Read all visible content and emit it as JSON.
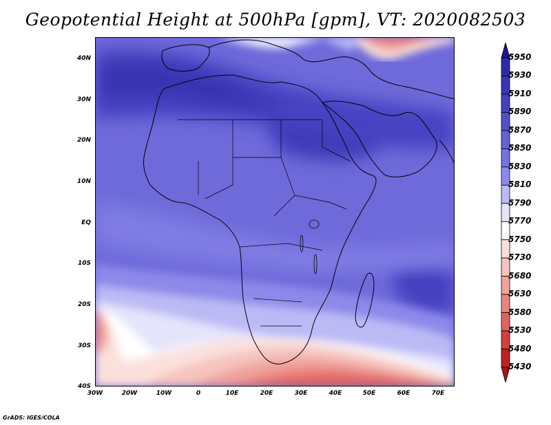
{
  "title": "Geopotential Height at 500hPa [gpm], VT: 2020082503",
  "credit": "GrADS: IGES/COLA",
  "lat_labels": [
    "40N",
    "30N",
    "20N",
    "10N",
    "EQ",
    "10S",
    "20S",
    "30S",
    "40S"
  ],
  "lon_labels": [
    "30W",
    "20W",
    "10W",
    "0",
    "10E",
    "20E",
    "30E",
    "40E",
    "50E",
    "60E",
    "70E"
  ],
  "legend": {
    "levels": [
      "5950",
      "5930",
      "5910",
      "5890",
      "5870",
      "5850",
      "5830",
      "5810",
      "5790",
      "5770",
      "5750",
      "5730",
      "5680",
      "5630",
      "5580",
      "5530",
      "5480",
      "5430"
    ],
    "colors": [
      "#1e1496",
      "#2d2ba5",
      "#3a36b4",
      "#4541c0",
      "#534fcb",
      "#6561d6",
      "#7672e0",
      "#8d89ea",
      "#bcbaf5",
      "#e4e4fb",
      "#ffffff",
      "#fbe0dc",
      "#f6c4bf",
      "#f0a39e",
      "#e98480",
      "#e16462",
      "#d44140",
      "#c21f24",
      "#a8121a"
    ]
  },
  "map": {
    "lat_range": [
      -40,
      45
    ],
    "lon_range": [
      -30,
      75
    ],
    "land_regions": [
      "Africa",
      "Arabian Peninsula",
      "Iberia",
      "Madagascar",
      "Mediterranean"
    ]
  }
}
